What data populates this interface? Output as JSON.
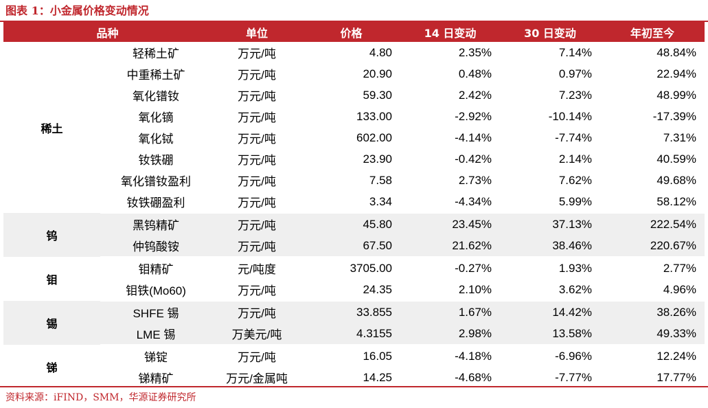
{
  "caption": "图表 1：小金属价格变动情况",
  "headers": [
    "品种",
    "单位",
    "价格",
    "14 日变动",
    "30 日变动",
    "年初至今"
  ],
  "groups": [
    {
      "category": "稀土",
      "shaded": false,
      "rows": [
        {
          "product": "轻稀土矿",
          "unit": "万元/吨",
          "price": "4.80",
          "chg14": "2.35%",
          "chg30": "7.14%",
          "ytd": "48.84%"
        },
        {
          "product": "中重稀土矿",
          "unit": "万元/吨",
          "price": "20.90",
          "chg14": "0.48%",
          "chg30": "0.97%",
          "ytd": "22.94%"
        },
        {
          "product": "氧化镨钕",
          "unit": "万元/吨",
          "price": "59.30",
          "chg14": "2.42%",
          "chg30": "7.23%",
          "ytd": "48.99%"
        },
        {
          "product": "氧化镝",
          "unit": "万元/吨",
          "price": "133.00",
          "chg14": "-2.92%",
          "chg30": "-10.14%",
          "ytd": "-17.39%"
        },
        {
          "product": "氧化铽",
          "unit": "万元/吨",
          "price": "602.00",
          "chg14": "-4.14%",
          "chg30": "-7.74%",
          "ytd": "7.31%"
        },
        {
          "product": "钕铁硼",
          "unit": "万元/吨",
          "price": "23.90",
          "chg14": "-0.42%",
          "chg30": "2.14%",
          "ytd": "40.59%"
        },
        {
          "product": "氧化镨钕盈利",
          "unit": "万元/吨",
          "price": "7.58",
          "chg14": "2.73%",
          "chg30": "7.62%",
          "ytd": "49.68%"
        },
        {
          "product": "钕铁硼盈利",
          "unit": "万元/吨",
          "price": "3.34",
          "chg14": "-4.34%",
          "chg30": "5.99%",
          "ytd": "58.12%"
        }
      ]
    },
    {
      "category": "钨",
      "shaded": true,
      "rows": [
        {
          "product": "黑钨精矿",
          "unit": "万元/吨",
          "price": "45.80",
          "chg14": "23.45%",
          "chg30": "37.13%",
          "ytd": "222.54%"
        },
        {
          "product": "仲钨酸铵",
          "unit": "万元/吨",
          "price": "67.50",
          "chg14": "21.62%",
          "chg30": "38.46%",
          "ytd": "220.67%"
        }
      ]
    },
    {
      "category": "钼",
      "shaded": false,
      "rows": [
        {
          "product": "钼精矿",
          "unit": "元/吨度",
          "price": "3705.00",
          "chg14": "-0.27%",
          "chg30": "1.93%",
          "ytd": "2.77%"
        },
        {
          "product": "钼铁(Mo60)",
          "unit": "万元/吨",
          "price": "24.35",
          "chg14": "2.10%",
          "chg30": "3.62%",
          "ytd": "4.96%"
        }
      ]
    },
    {
      "category": "锡",
      "shaded": true,
      "rows": [
        {
          "product": "SHFE 锡",
          "unit": "万元/吨",
          "price": "33.855",
          "chg14": "1.67%",
          "chg30": "14.42%",
          "ytd": "38.26%"
        },
        {
          "product": "LME 锡",
          "unit": "万美元/吨",
          "price": "4.3155",
          "chg14": "2.98%",
          "chg30": "13.58%",
          "ytd": "49.33%"
        }
      ]
    },
    {
      "category": "锑",
      "shaded": false,
      "rows": [
        {
          "product": "锑锭",
          "unit": "万元/吨",
          "price": "16.05",
          "chg14": "-4.18%",
          "chg30": "-6.96%",
          "ytd": "12.24%"
        },
        {
          "product": "锑精矿",
          "unit": "万元/金属吨",
          "price": "14.25",
          "chg14": "-4.68%",
          "chg30": "-7.77%",
          "ytd": "17.77%"
        }
      ]
    }
  ],
  "source": "资料来源：iFIND，SMM，华源证券研究所",
  "colors": {
    "accent": "#c0272d",
    "shaded_row": "#efefef",
    "header_text": "#ffffff"
  }
}
